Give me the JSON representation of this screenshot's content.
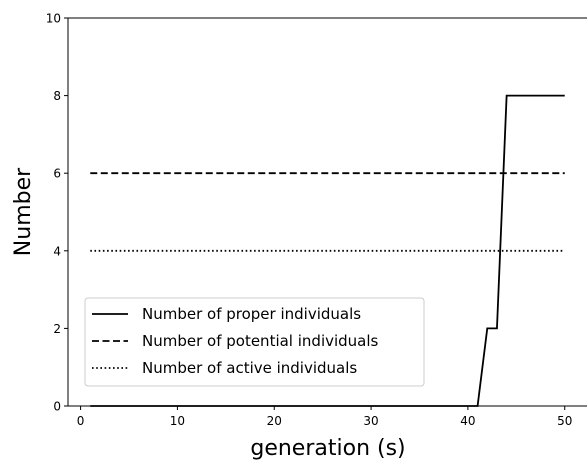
{
  "chart_data": {
    "type": "line",
    "title": "",
    "xlabel": "generation (s)",
    "ylabel": "Number",
    "xlim": [
      -1.3,
      52.3
    ],
    "ylim": [
      0,
      10
    ],
    "xticks": [
      0,
      10,
      20,
      30,
      40,
      50
    ],
    "yticks": [
      0,
      2,
      4,
      6,
      8,
      10
    ],
    "grid": false,
    "legend_position": "lower-left",
    "series": [
      {
        "name": "Number of proper individuals",
        "linestyle": "solid",
        "color": "#000000",
        "x": [
          1,
          41,
          42,
          43,
          44,
          50
        ],
        "y": [
          0,
          0,
          2,
          2,
          8,
          8
        ]
      },
      {
        "name": "Number of potential individuals",
        "linestyle": "dashed",
        "color": "#000000",
        "x": [
          1,
          50
        ],
        "y": [
          6,
          6
        ]
      },
      {
        "name": "Number of active individuals",
        "linestyle": "dotted",
        "color": "#000000",
        "x": [
          1,
          50
        ],
        "y": [
          4,
          4
        ]
      }
    ]
  }
}
